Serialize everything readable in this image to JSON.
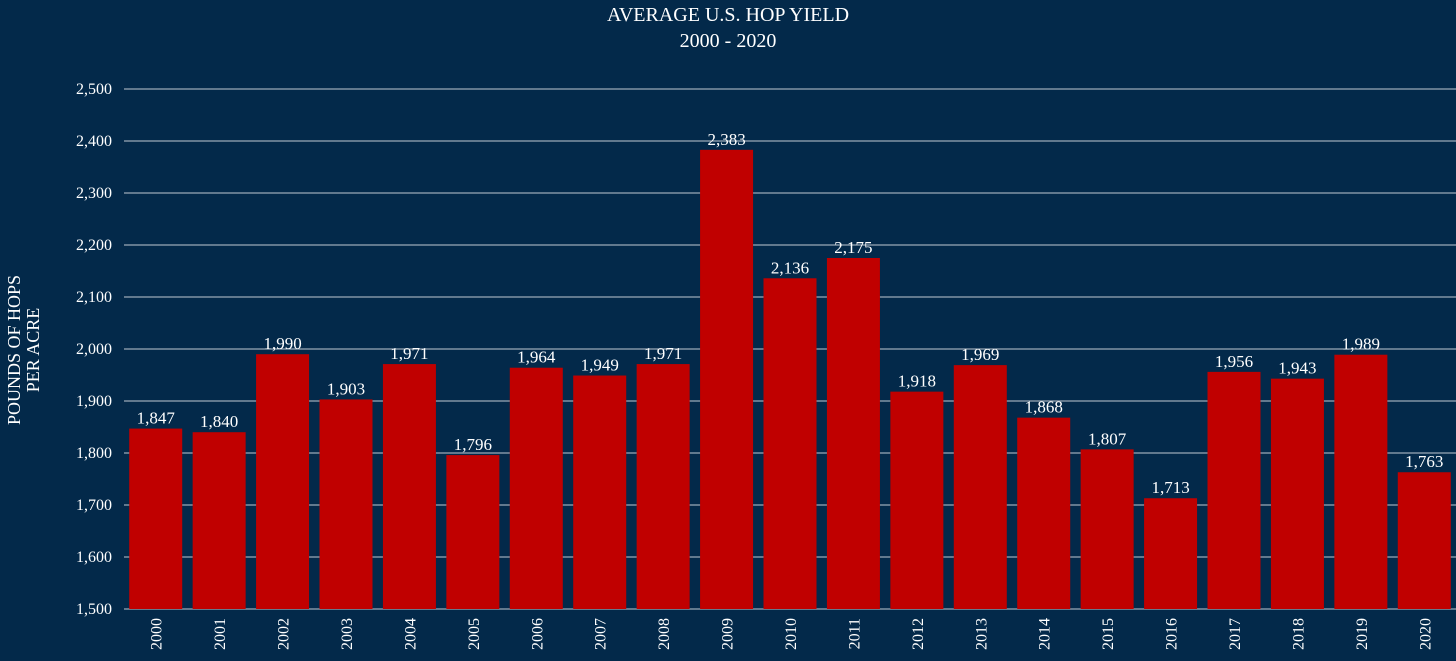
{
  "chart_data": {
    "type": "bar",
    "title": "AVERAGE U.S. HOP YIELD",
    "subtitle": "2000 - 2020",
    "xlabel": "",
    "ylabel": [
      "POUNDS OF HOPS",
      "PER ACRE"
    ],
    "categories": [
      "2000",
      "2001",
      "2002",
      "2003",
      "2004",
      "2005",
      "2006",
      "2007",
      "2008",
      "2009",
      "2010",
      "2011",
      "2012",
      "2013",
      "2014",
      "2015",
      "2016",
      "2017",
      "2018",
      "2019",
      "2020"
    ],
    "values": [
      1847,
      1840,
      1990,
      1903,
      1971,
      1796,
      1964,
      1949,
      1971,
      2383,
      2136,
      2175,
      1918,
      1969,
      1868,
      1807,
      1713,
      1956,
      1943,
      1989,
      1763
    ],
    "value_labels": [
      "1,847",
      "1,840",
      "1,990",
      "1,903",
      "1,971",
      "1,796",
      "1,964",
      "1,949",
      "1,971",
      "2,383",
      "2,136",
      "2,175",
      "1,918",
      "1,969",
      "1,868",
      "1,807",
      "1,713",
      "1,956",
      "1,943",
      "1,989",
      "1,763"
    ],
    "ylim": [
      1500,
      2500
    ],
    "yticks": [
      1500,
      1600,
      1700,
      1800,
      1900,
      2000,
      2100,
      2200,
      2300,
      2400,
      2500
    ],
    "ytick_labels": [
      "1,500",
      "1,600",
      "1,700",
      "1,800",
      "1,900",
      "2,000",
      "2,100",
      "2,200",
      "2,300",
      "2,400",
      "2,500"
    ],
    "grid": true,
    "legend": "none",
    "colors": {
      "background": "#03294a",
      "bar": "#c00000",
      "text": "#ffffff",
      "grid": "#ffffff"
    }
  }
}
